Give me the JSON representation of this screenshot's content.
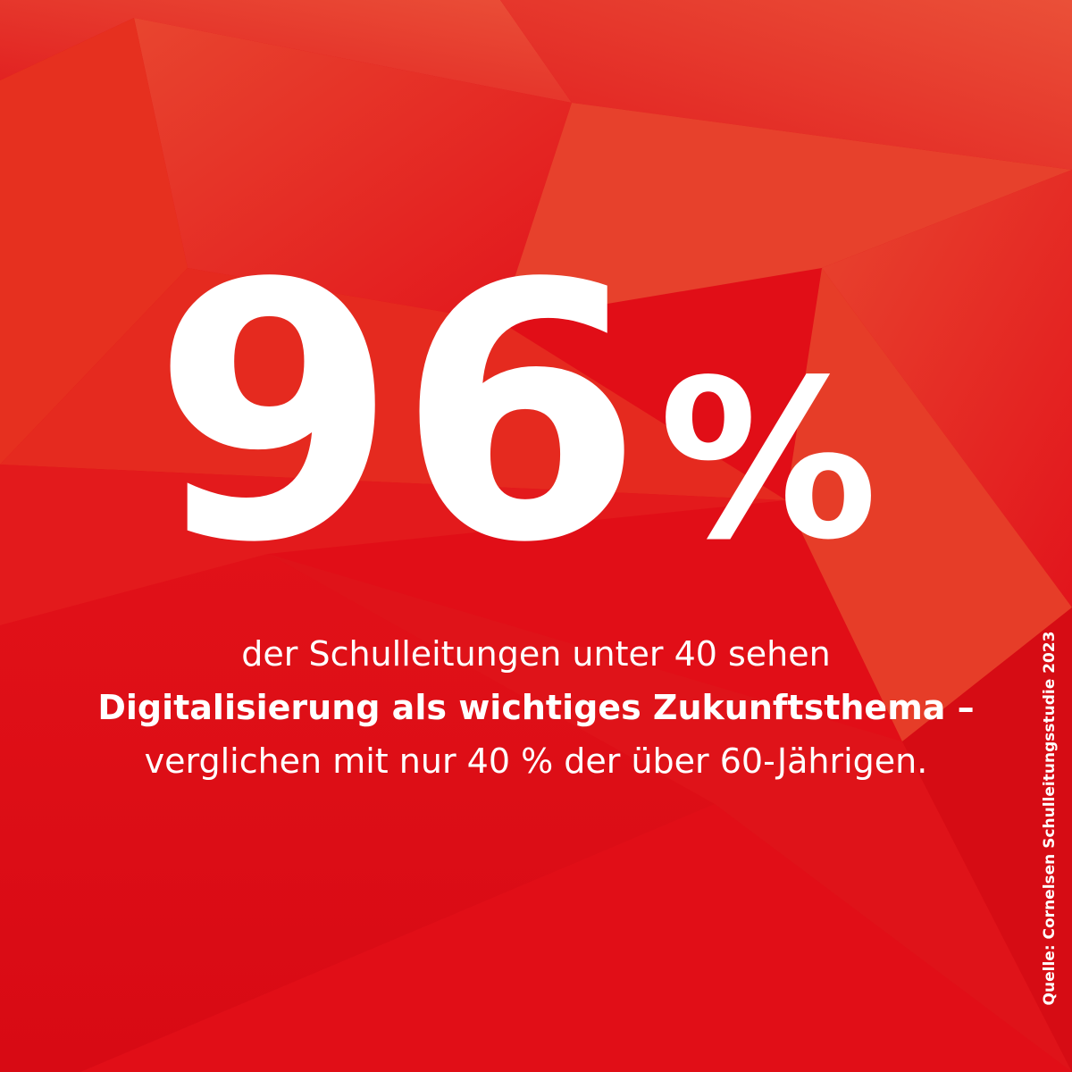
{
  "headline": {
    "number": "96",
    "unit": "%"
  },
  "statement": {
    "line1": "der Schulleitungen unter 40 sehen",
    "line2": "Digitalisierung als wichtiges Zukunftsthema –",
    "line3": "verglichen mit nur 40 % der über 60-Jährigen."
  },
  "source": "Quelle: Cornelsen Schulleitungsstudie 2023"
}
